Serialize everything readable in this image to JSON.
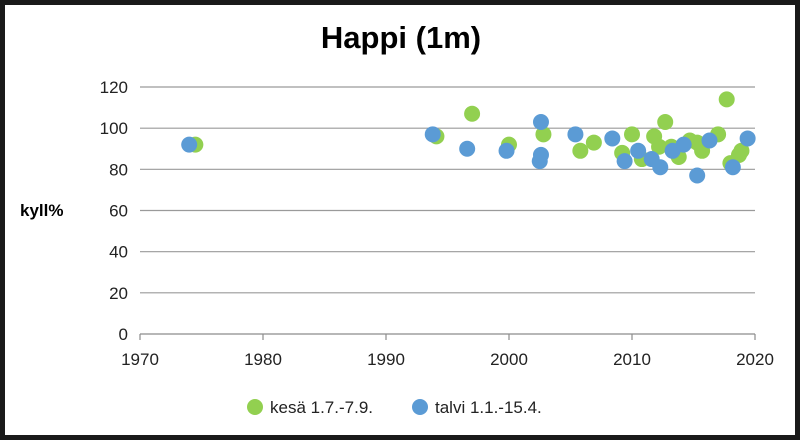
{
  "chart_data": {
    "type": "scatter",
    "title": "Happi (1m)",
    "ylabel": "kyll%",
    "xlabel": "",
    "xlim": [
      1970,
      2020
    ],
    "ylim": [
      0,
      120
    ],
    "xticks": [
      "1970",
      "1980",
      "1990",
      "2000",
      "2010",
      "2020"
    ],
    "yticks": [
      "0",
      "20",
      "40",
      "60",
      "80",
      "100",
      "120"
    ],
    "grid": "horizontal",
    "legend_position": "bottom",
    "series": [
      {
        "name": "kesä 1.7.-7.9.",
        "color": "#92d050",
        "points": [
          [
            1974.5,
            92
          ],
          [
            1994.1,
            96
          ],
          [
            1997.0,
            107
          ],
          [
            2000.0,
            92
          ],
          [
            2002.8,
            97
          ],
          [
            2005.8,
            89
          ],
          [
            2006.9,
            93
          ],
          [
            2009.2,
            88
          ],
          [
            2010.0,
            97
          ],
          [
            2010.8,
            85
          ],
          [
            2011.8,
            96
          ],
          [
            2012.2,
            91
          ],
          [
            2012.7,
            103
          ],
          [
            2013.2,
            91
          ],
          [
            2013.8,
            86
          ],
          [
            2014.7,
            94
          ],
          [
            2015.3,
            93
          ],
          [
            2015.7,
            89
          ],
          [
            2017.0,
            97
          ],
          [
            2017.7,
            114
          ],
          [
            2018.0,
            83
          ],
          [
            2018.7,
            87
          ],
          [
            2018.9,
            89
          ]
        ]
      },
      {
        "name": "talvi 1.1.-15.4.",
        "color": "#5b9bd5",
        "points": [
          [
            1974.0,
            92
          ],
          [
            1993.8,
            97
          ],
          [
            1996.6,
            90
          ],
          [
            1999.8,
            89
          ],
          [
            2002.6,
            103
          ],
          [
            2002.5,
            84
          ],
          [
            2002.6,
            87
          ],
          [
            2005.4,
            97
          ],
          [
            2008.4,
            95
          ],
          [
            2009.4,
            84
          ],
          [
            2010.5,
            89
          ],
          [
            2011.6,
            85
          ],
          [
            2012.3,
            81
          ],
          [
            2013.3,
            89
          ],
          [
            2014.2,
            92
          ],
          [
            2015.3,
            77
          ],
          [
            2016.3,
            94
          ],
          [
            2018.2,
            81
          ],
          [
            2019.4,
            95
          ]
        ]
      }
    ]
  }
}
